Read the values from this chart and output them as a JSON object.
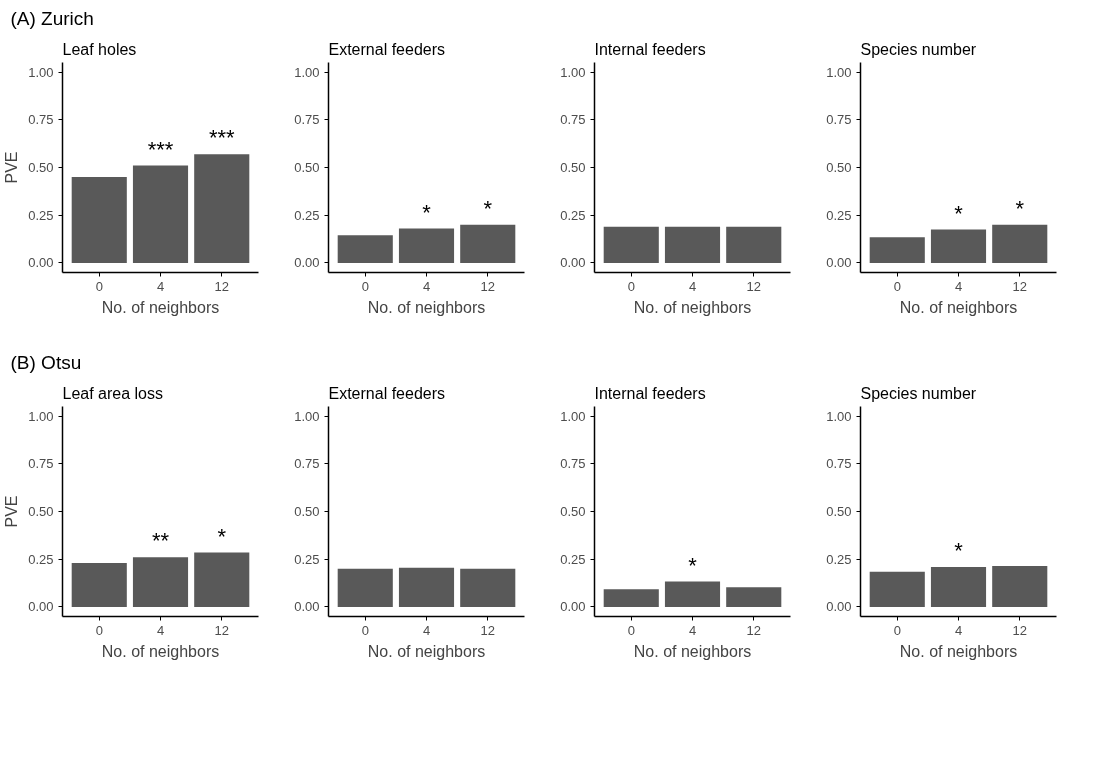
{
  "chart_data": [
    {
      "type": "bar",
      "title": "Leaf holes",
      "xlabel": "No. of neighbors",
      "ylabel": "PVE",
      "categories": [
        "0",
        "4",
        "12"
      ],
      "values": [
        0.45,
        0.51,
        0.57
      ],
      "color": "#595959",
      "ylim": [
        -0.05,
        1.05
      ],
      "yticks": [
        {
          "value": 0,
          "label": "0.00"
        },
        {
          "value": 0.25,
          "label": "0.25"
        },
        {
          "value": 0.5,
          "label": "0.50"
        },
        {
          "value": 0.75,
          "label": "0.75"
        },
        {
          "value": 1,
          "label": "1.00"
        }
      ],
      "annotations": [
        "(A) Zurich",
        {
          "text": "***",
          "x": "4",
          "y": 0.51
        },
        {
          "text": "***",
          "x": "12",
          "y": 0.57
        }
      ]
    },
    {
      "type": "bar",
      "title": "External feeders",
      "xlabel": "No. of neighbors",
      "categories": [
        "0",
        "4",
        "12"
      ],
      "values": [
        0.145,
        0.18,
        0.2
      ],
      "color": "#595959",
      "ylim": [
        -0.05,
        1.05
      ],
      "yticks": [
        {
          "value": 0,
          "label": "0.00"
        },
        {
          "value": 0.25,
          "label": "0.25"
        },
        {
          "value": 0.5,
          "label": "0.50"
        },
        {
          "value": 0.75,
          "label": "0.75"
        },
        {
          "value": 1,
          "label": "1.00"
        }
      ],
      "annotations": [
        {
          "text": "*",
          "x": "4",
          "y": 0.18
        },
        {
          "text": "*",
          "x": "12",
          "y": 0.2
        }
      ]
    },
    {
      "type": "bar",
      "title": "Internal feeders",
      "xlabel": "No. of neighbors",
      "categories": [
        "0",
        "4",
        "12"
      ],
      "values": [
        0.19,
        0.19,
        0.19
      ],
      "color": "#595959",
      "ylim": [
        -0.05,
        1.05
      ],
      "yticks": [
        {
          "value": 0,
          "label": "0.00"
        },
        {
          "value": 0.25,
          "label": "0.25"
        },
        {
          "value": 0.5,
          "label": "0.50"
        },
        {
          "value": 0.75,
          "label": "0.75"
        },
        {
          "value": 1,
          "label": "1.00"
        }
      ]
    },
    {
      "type": "bar",
      "title": "Species number",
      "xlabel": "No. of neighbors",
      "categories": [
        "0",
        "4",
        "12"
      ],
      "values": [
        0.135,
        0.175,
        0.2
      ],
      "color": "#595959",
      "ylim": [
        -0.05,
        1.05
      ],
      "yticks": [
        {
          "value": 0,
          "label": "0.00"
        },
        {
          "value": 0.25,
          "label": "0.25"
        },
        {
          "value": 0.5,
          "label": "0.50"
        },
        {
          "value": 0.75,
          "label": "0.75"
        },
        {
          "value": 1,
          "label": "1.00"
        }
      ],
      "annotations": [
        {
          "text": "*",
          "x": "4",
          "y": 0.175
        },
        {
          "text": "*",
          "x": "12",
          "y": 0.2
        }
      ]
    },
    {
      "type": "bar",
      "title": "Leaf area loss",
      "xlabel": "No. of neighbors",
      "ylabel": "PVE",
      "categories": [
        "0",
        "4",
        "12"
      ],
      "values": [
        0.23,
        0.26,
        0.285
      ],
      "color": "#595959",
      "ylim": [
        -0.05,
        1.05
      ],
      "yticks": [
        {
          "value": 0,
          "label": "0.00"
        },
        {
          "value": 0.25,
          "label": "0.25"
        },
        {
          "value": 0.5,
          "label": "0.50"
        },
        {
          "value": 0.75,
          "label": "0.75"
        },
        {
          "value": 1,
          "label": "1.00"
        }
      ],
      "annotations": [
        "(B) Otsu",
        {
          "text": "**",
          "x": "4",
          "y": 0.26
        },
        {
          "text": "*",
          "x": "12",
          "y": 0.285
        }
      ]
    },
    {
      "type": "bar",
      "title": "External feeders",
      "xlabel": "No. of neighbors",
      "categories": [
        "0",
        "4",
        "12"
      ],
      "values": [
        0.2,
        0.205,
        0.2
      ],
      "color": "#595959",
      "ylim": [
        -0.05,
        1.05
      ],
      "yticks": [
        {
          "value": 0,
          "label": "0.00"
        },
        {
          "value": 0.25,
          "label": "0.25"
        },
        {
          "value": 0.5,
          "label": "0.50"
        },
        {
          "value": 0.75,
          "label": "0.75"
        },
        {
          "value": 1,
          "label": "1.00"
        }
      ]
    },
    {
      "type": "bar",
      "title": "Internal feeders",
      "xlabel": "No. of neighbors",
      "categories": [
        "0",
        "4",
        "12"
      ],
      "values": [
        0.093,
        0.133,
        0.103
      ],
      "color": "#595959",
      "ylim": [
        -0.05,
        1.05
      ],
      "yticks": [
        {
          "value": 0,
          "label": "0.00"
        },
        {
          "value": 0.25,
          "label": "0.25"
        },
        {
          "value": 0.5,
          "label": "0.50"
        },
        {
          "value": 0.75,
          "label": "0.75"
        },
        {
          "value": 1,
          "label": "1.00"
        }
      ],
      "annotations": [
        {
          "text": "*",
          "x": "4",
          "y": 0.133
        }
      ]
    },
    {
      "type": "bar",
      "title": "Species number",
      "xlabel": "No. of neighbors",
      "categories": [
        "0",
        "4",
        "12"
      ],
      "values": [
        0.184,
        0.209,
        0.214
      ],
      "color": "#595959",
      "ylim": [
        -0.05,
        1.05
      ],
      "yticks": [
        {
          "value": 0,
          "label": "0.00"
        },
        {
          "value": 0.25,
          "label": "0.25"
        },
        {
          "value": 0.5,
          "label": "0.50"
        },
        {
          "value": 0.75,
          "label": "0.75"
        },
        {
          "value": 1,
          "label": "1.00"
        }
      ],
      "annotations": [
        {
          "text": "*",
          "x": "4",
          "y": 0.209
        }
      ]
    }
  ]
}
